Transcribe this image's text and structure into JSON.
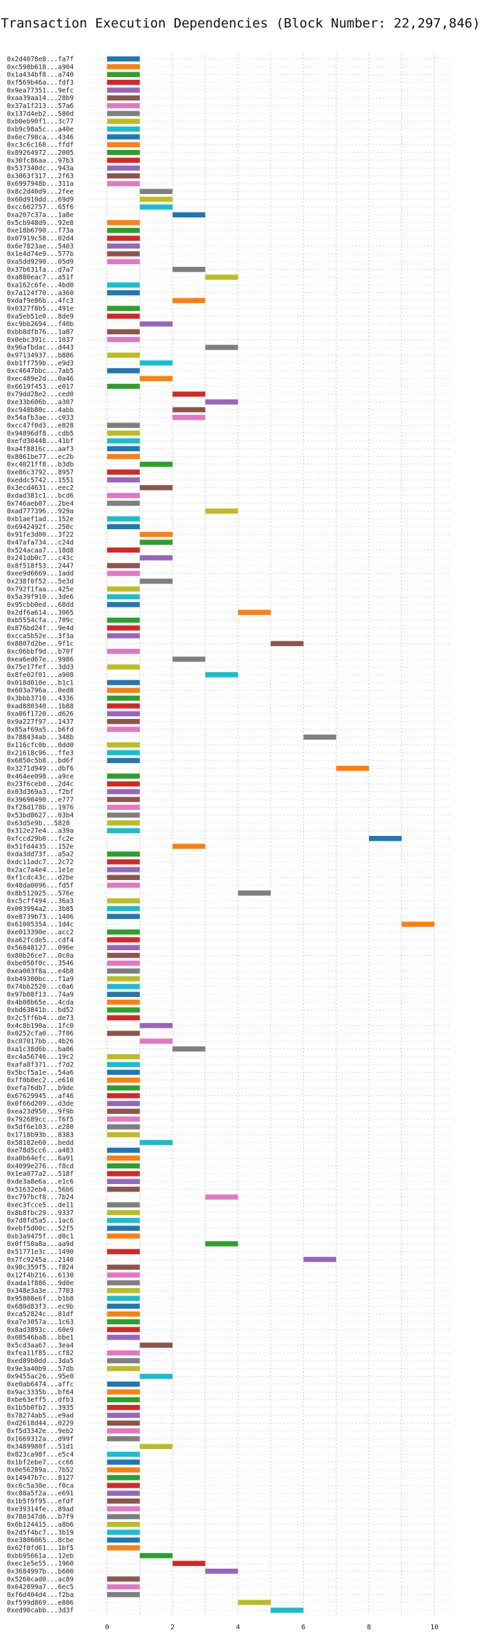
{
  "chart_data": {
    "type": "bar",
    "orientation": "horizontal-gantt",
    "title": "Transaction Execution Dependencies (Block Number: 22,297,846)",
    "xlabel": "",
    "ylabel": "",
    "xlim": [
      -0.5,
      10.5
    ],
    "xticks": [
      0,
      2,
      4,
      6,
      8,
      10
    ],
    "grid": true,
    "palette": [
      "#1f77b4",
      "#ff7f0e",
      "#2ca02c",
      "#d62728",
      "#9467bd",
      "#8c564b",
      "#e377c2",
      "#7f7f7f",
      "#bcbd22",
      "#17becf"
    ],
    "transactions": [
      {
        "label": "0x2d4078e8...fa7f",
        "start": 0
      },
      {
        "label": "0xc598b618...a904",
        "start": 0
      },
      {
        "label": "0x1a434bf8...a740",
        "start": 0
      },
      {
        "label": "0xf569b46a...fdf3",
        "start": 0
      },
      {
        "label": "0x9ea77351...9efc",
        "start": 0
      },
      {
        "label": "0xaa39aa14...28b9",
        "start": 0
      },
      {
        "label": "0x37a1f213...57a6",
        "start": 0
      },
      {
        "label": "0x137d4eb2...580d",
        "start": 0
      },
      {
        "label": "0xb0eb90f1...3c77",
        "start": 0
      },
      {
        "label": "0xb9c98a5c...a40e",
        "start": 0
      },
      {
        "label": "0x6ec798ca...4346",
        "start": 0
      },
      {
        "label": "0xc3c6c168...ffdf",
        "start": 0
      },
      {
        "label": "0x89264972...2005",
        "start": 0
      },
      {
        "label": "0x30fc86aa...97b3",
        "start": 0
      },
      {
        "label": "0x537340dc...943a",
        "start": 0
      },
      {
        "label": "0x3063f317...2f63",
        "start": 0
      },
      {
        "label": "0x6997948b...311a",
        "start": 0
      },
      {
        "label": "0x8c2d40d9...2fee",
        "start": 1
      },
      {
        "label": "0x60d910dd...69d9",
        "start": 1
      },
      {
        "label": "0xcc602757...65f6",
        "start": 1
      },
      {
        "label": "0xa207c37a...1a8e",
        "start": 2
      },
      {
        "label": "0x5cb948d9...92e8",
        "start": 0
      },
      {
        "label": "0xe18b6790...f73a",
        "start": 0
      },
      {
        "label": "0x07919c58...02d4",
        "start": 0
      },
      {
        "label": "0x6e7823ae...5403",
        "start": 0
      },
      {
        "label": "0x1e4d74e9...577b",
        "start": 0
      },
      {
        "label": "0xa5dd9290...05d9",
        "start": 0
      },
      {
        "label": "0x37b631fa...d7a7",
        "start": 2
      },
      {
        "label": "0xa880eac7...a51f",
        "start": 3
      },
      {
        "label": "0xa162c6fe...4bd0",
        "start": 0
      },
      {
        "label": "0x7a124f70...a360",
        "start": 0
      },
      {
        "label": "0xdaf9e86b...4fc3",
        "start": 2
      },
      {
        "label": "0x0327f8b5...491e",
        "start": 0
      },
      {
        "label": "0xa5eb51e0...8de9",
        "start": 0
      },
      {
        "label": "0xc9bb2694...f40b",
        "start": 1
      },
      {
        "label": "0xbb8dfb76...1a87",
        "start": 0
      },
      {
        "label": "0x0ebc391c...1037",
        "start": 0
      },
      {
        "label": "0x96afbdac...d443",
        "start": 3
      },
      {
        "label": "0x97134937...b886",
        "start": 0
      },
      {
        "label": "0xb1ff759b...e9d3",
        "start": 1
      },
      {
        "label": "0xc4647bbc...7ab5",
        "start": 0
      },
      {
        "label": "0xec489e2d...0a46",
        "start": 1
      },
      {
        "label": "0x6619f453...e017",
        "start": 0
      },
      {
        "label": "0x79dd28e2...ced0",
        "start": 2
      },
      {
        "label": "0xe33b606b...a307",
        "start": 3
      },
      {
        "label": "0xc948b80c...4abb",
        "start": 2
      },
      {
        "label": "0x54afb3ae...c033",
        "start": 2
      },
      {
        "label": "0xcc47f0d3...e828",
        "start": 0
      },
      {
        "label": "0x94896df8...cdb5",
        "start": 0
      },
      {
        "label": "0xefd30448...41bf",
        "start": 0
      },
      {
        "label": "0xa4f8816c...aaf3",
        "start": 0
      },
      {
        "label": "0x8061be77...ec2b",
        "start": 0
      },
      {
        "label": "0xc4021ff8...b3db",
        "start": 1
      },
      {
        "label": "0xe86c3792...8957",
        "start": 0
      },
      {
        "label": "0xeddc5742...1551",
        "start": 0
      },
      {
        "label": "0x3ecd4631...eec2",
        "start": 1
      },
      {
        "label": "0xdad381c1...bcd6",
        "start": 0
      },
      {
        "label": "0x746aeb07...2be4",
        "start": 0
      },
      {
        "label": "0xad777396...929a",
        "start": 3
      },
      {
        "label": "0xb1aef1ad...152e",
        "start": 0
      },
      {
        "label": "0x6942492f...250c",
        "start": 0
      },
      {
        "label": "0x91fe3d00...3f22",
        "start": 1
      },
      {
        "label": "0x47afa734...c24d",
        "start": 1
      },
      {
        "label": "0x524acaa7...18d8",
        "start": 0
      },
      {
        "label": "0x241db0c7...c43c",
        "start": 1
      },
      {
        "label": "0x8f518f53...2447",
        "start": 0
      },
      {
        "label": "0xee9d6669...1add",
        "start": 0
      },
      {
        "label": "0x238f0f52...5e3d",
        "start": 1
      },
      {
        "label": "0x792f1faa...425e",
        "start": 0
      },
      {
        "label": "0x5a39f910...3de6",
        "start": 0
      },
      {
        "label": "0x95cbb0ed...68dd",
        "start": 0
      },
      {
        "label": "0x2df6a614...3065",
        "start": 4
      },
      {
        "label": "0xb5554cfa...709c",
        "start": 0
      },
      {
        "label": "0x876bd24f...9e4d",
        "start": 0
      },
      {
        "label": "0xcca5b52e...3f3a",
        "start": 0
      },
      {
        "label": "0x8807d2be...9f1c",
        "start": 5
      },
      {
        "label": "0xc06bbf9d...b70f",
        "start": 0
      },
      {
        "label": "0xea6ed67e...9986",
        "start": 2
      },
      {
        "label": "0x75e17fef...3dd3",
        "start": 0
      },
      {
        "label": "0x8fe02f01...a908",
        "start": 3
      },
      {
        "label": "0x018d010e...b1c1",
        "start": 0
      },
      {
        "label": "0x603a796a...0ed8",
        "start": 0
      },
      {
        "label": "0x3bbb3710...4336",
        "start": 0
      },
      {
        "label": "0xad880340...1b88",
        "start": 0
      },
      {
        "label": "0xa86f1720...d626",
        "start": 0
      },
      {
        "label": "0x9a227f97...1437",
        "start": 0
      },
      {
        "label": "0x85af69a5...b6fd",
        "start": 0
      },
      {
        "label": "0x788434ab...348b",
        "start": 6
      },
      {
        "label": "0x116cfc0b...0dd0",
        "start": 0
      },
      {
        "label": "0x21618c96...ffe3",
        "start": 0
      },
      {
        "label": "0x6850c5b8...bd6f",
        "start": 0
      },
      {
        "label": "0x3271d949...dbf6",
        "start": 7
      },
      {
        "label": "0x464ee098...a9ce",
        "start": 0
      },
      {
        "label": "0x23f6ceb0...2d4c",
        "start": 0
      },
      {
        "label": "0x03d369a3...f2bf",
        "start": 0
      },
      {
        "label": "0x39690490...e777",
        "start": 0
      },
      {
        "label": "0xf28d178b...1976",
        "start": 0
      },
      {
        "label": "0x53bd8627...03b4",
        "start": 0
      },
      {
        "label": "0x63d5e9b...5828",
        "start": 0
      },
      {
        "label": "0x312e27e4...a39a",
        "start": 0
      },
      {
        "label": "0xfccd29b0...fc2e",
        "start": 8
      },
      {
        "label": "0x51fd4435...152e",
        "start": 2
      },
      {
        "label": "0xda3dd73f...a5a2",
        "start": 0
      },
      {
        "label": "0xdc11adc7...2c72",
        "start": 0
      },
      {
        "label": "0x2ac7a4e4...1e1e",
        "start": 0
      },
      {
        "label": "0xf1cdc43c...d2be",
        "start": 0
      },
      {
        "label": "0x48da0096...fd5f",
        "start": 0
      },
      {
        "label": "0x8b512025...576e",
        "start": 4
      },
      {
        "label": "0xc5cff494...36a3",
        "start": 0
      },
      {
        "label": "0x003994a2...3b85",
        "start": 0
      },
      {
        "label": "0xe8739b73...1406",
        "start": 0
      },
      {
        "label": "0x61005354...1d4c",
        "start": 9
      },
      {
        "label": "0xe013390e...acc2",
        "start": 0
      },
      {
        "label": "0xa62fcde5...cdf4",
        "start": 0
      },
      {
        "label": "0x56848127...096e",
        "start": 0
      },
      {
        "label": "0x80b26ce7...0c0a",
        "start": 0
      },
      {
        "label": "0xbe050f0c...3546",
        "start": 0
      },
      {
        "label": "0xea003f8a...e4b8",
        "start": 0
      },
      {
        "label": "0xb49300bc...f1a9",
        "start": 0
      },
      {
        "label": "0x74bb2520...c0a6",
        "start": 0
      },
      {
        "label": "0x97b08f13...74a9",
        "start": 0
      },
      {
        "label": "0x4b08b65e...4cda",
        "start": 0
      },
      {
        "label": "0xbd63841b...bd52",
        "start": 0
      },
      {
        "label": "0x2c5ff6b4...de73",
        "start": 0
      },
      {
        "label": "0x4c8b190a...1fc0",
        "start": 1
      },
      {
        "label": "0x0252cfa0...7f06",
        "start": 0
      },
      {
        "label": "0xc07017bb...4b26",
        "start": 1
      },
      {
        "label": "0xa1c38d6b...ba06",
        "start": 2
      },
      {
        "label": "0xc4a56746...19c2",
        "start": 0
      },
      {
        "label": "0xafa8f371...f7d2",
        "start": 0
      },
      {
        "label": "0x5bcf5a1e...54a6",
        "start": 0
      },
      {
        "label": "0xff0b0ec2...e610",
        "start": 0
      },
      {
        "label": "0xefa76db7...b9de",
        "start": 0
      },
      {
        "label": "0x67629945...af46",
        "start": 0
      },
      {
        "label": "0x0f66d209...d3de",
        "start": 0
      },
      {
        "label": "0xea23d950...9f9b",
        "start": 0
      },
      {
        "label": "0x792689cc...f6f5",
        "start": 0
      },
      {
        "label": "0x5df6e103...e280",
        "start": 0
      },
      {
        "label": "0x1718b93b...8383",
        "start": 0
      },
      {
        "label": "0x58182e60...bedd",
        "start": 1
      },
      {
        "label": "0xe78d5cc6...a483",
        "start": 0
      },
      {
        "label": "0xa0b64efc...6a91",
        "start": 0
      },
      {
        "label": "0x4099e276...f8cd",
        "start": 0
      },
      {
        "label": "0x1ea077a2...518f",
        "start": 0
      },
      {
        "label": "0xde3a8e6a...e1c6",
        "start": 0
      },
      {
        "label": "0x51632eb4...56b6",
        "start": 0
      },
      {
        "label": "0xc797bcf8...7b24",
        "start": 3
      },
      {
        "label": "0xec3fcce5...de11",
        "start": 0
      },
      {
        "label": "0x8b8fbc29...9337",
        "start": 0
      },
      {
        "label": "0x7d8fd5a5...1ac6",
        "start": 0
      },
      {
        "label": "0xebf5d00c...52f5",
        "start": 0
      },
      {
        "label": "0xb3a9475f...d0c1",
        "start": 0
      },
      {
        "label": "0x0ff50a8a...aa9d",
        "start": 3
      },
      {
        "label": "0x51771e3c...1490",
        "start": 0
      },
      {
        "label": "0x7fc9245a...2140",
        "start": 6
      },
      {
        "label": "0x98c359f5...f824",
        "start": 0
      },
      {
        "label": "0x12f4b216...6130",
        "start": 0
      },
      {
        "label": "0xada1f886...9d0e",
        "start": 0
      },
      {
        "label": "0x348e3a3e...7703",
        "start": 0
      },
      {
        "label": "0x95808e6f...b1b8",
        "start": 0
      },
      {
        "label": "0x680d83f3...ec9b",
        "start": 0
      },
      {
        "label": "0xca52824c...81df",
        "start": 0
      },
      {
        "label": "0xa7e3057a...1c63",
        "start": 0
      },
      {
        "label": "0x8ad3893c...60e9",
        "start": 0
      },
      {
        "label": "0x08546ba8...bbe1",
        "start": 0
      },
      {
        "label": "0x5cd3aa67...3ea4",
        "start": 1
      },
      {
        "label": "0xfea11f85...cf82",
        "start": 0
      },
      {
        "label": "0xed89b0dd...3da5",
        "start": 0
      },
      {
        "label": "0x9e3a40b9...57db",
        "start": 0
      },
      {
        "label": "0x9455ac26...95e0",
        "start": 1
      },
      {
        "label": "0xe0ab6474...affc",
        "start": 0
      },
      {
        "label": "0x9ac3335b...bf64",
        "start": 0
      },
      {
        "label": "0xbe63eff5...dfb3",
        "start": 0
      },
      {
        "label": "0x1b5b0fb2...3935",
        "start": 0
      },
      {
        "label": "0x78274ab5...e9ad",
        "start": 0
      },
      {
        "label": "0xd2618d44...0229",
        "start": 0
      },
      {
        "label": "0xf5d3342e...9eb2",
        "start": 0
      },
      {
        "label": "0x1669312a...d99f",
        "start": 0
      },
      {
        "label": "0x3489980f...51d1",
        "start": 1
      },
      {
        "label": "0x823ca98f...e5c4",
        "start": 0
      },
      {
        "label": "0x1bf2ebe7...cc66",
        "start": 0
      },
      {
        "label": "0x0e56289a...7b52",
        "start": 0
      },
      {
        "label": "0x14947b7c...8127",
        "start": 0
      },
      {
        "label": "0xc6c5a30e...f0ca",
        "start": 0
      },
      {
        "label": "0xc88a5f2a...e691",
        "start": 0
      },
      {
        "label": "0x1b5f9f95...efdf",
        "start": 0
      },
      {
        "label": "0xe39314fe...89ad",
        "start": 0
      },
      {
        "label": "0x780347d6...b7f9",
        "start": 0
      },
      {
        "label": "0x6b124415...a8b6",
        "start": 0
      },
      {
        "label": "0x2d5f4bc7...3b19",
        "start": 0
      },
      {
        "label": "0xe3806065...8cbe",
        "start": 0
      },
      {
        "label": "0x62f0fd61...1bf5",
        "start": 0
      },
      {
        "label": "0xbb95661a...12eb",
        "start": 1
      },
      {
        "label": "0xec1e5e55...1960",
        "start": 2
      },
      {
        "label": "0x3684997b...b600",
        "start": 3
      },
      {
        "label": "0x5260cad0...ac89",
        "start": 0
      },
      {
        "label": "0x642899a7...6ec5",
        "start": 0
      },
      {
        "label": "0xf6d404d4...f2ba",
        "start": 0
      },
      {
        "label": "0xf599d869...e806",
        "start": 4
      },
      {
        "label": "0xed90cabb...3d3f",
        "start": 5
      }
    ]
  }
}
